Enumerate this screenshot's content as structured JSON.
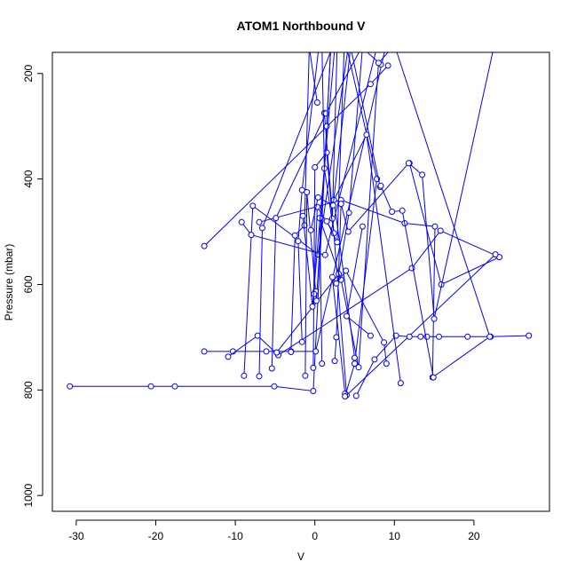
{
  "chart_data": {
    "type": "line",
    "title": "ATOM1 Northbound V",
    "xlabel": "V",
    "ylabel": "Pressure (mbar)",
    "xlim": [
      -33,
      29.5
    ],
    "ylim": [
      1030,
      160
    ],
    "y_reversed": true,
    "xticks": [
      -30,
      -20,
      -10,
      0,
      10,
      20
    ],
    "yticks": [
      200,
      400,
      600,
      800,
      1000
    ],
    "grid": false,
    "legend": "none",
    "line_color": "#0000ff",
    "marker": "open-circle",
    "series": [
      {
        "x": [
          -30.8,
          -20.6,
          -17.6,
          -5.1,
          -0.2,
          2.0
        ],
        "y": [
          793,
          793,
          793,
          793,
          802,
          150
        ]
      },
      {
        "x": [
          -13.9,
          -10.3,
          -6.1,
          -3.0,
          0.1,
          8.9
        ],
        "y": [
          727,
          727,
          727,
          727,
          727,
          150
        ]
      },
      {
        "x": [
          -13.9,
          7.0,
          9.2
        ],
        "y": [
          527,
          220,
          185
        ]
      },
      {
        "x": [
          -10.9,
          -7.2,
          -4.6,
          12.2,
          15.8,
          23.2,
          15.9,
          11.9
        ],
        "y": [
          737,
          697,
          734,
          569,
          498,
          548,
          600,
          370
        ]
      },
      {
        "x": [
          22.7,
          4.0,
          1.2
        ],
        "y": [
          543,
          810,
          275
        ]
      },
      {
        "x": [
          26.9,
          22.1,
          19.2,
          15.6,
          14.1,
          13.3,
          11.9,
          10.2,
          7.5,
          5.2
        ],
        "y": [
          697,
          699,
          699,
          699,
          699,
          699,
          699,
          697,
          742,
          811
        ]
      },
      {
        "x": [
          -8.9,
          -7.8,
          0.4,
          4.2
        ],
        "y": [
          773,
          451,
          543,
          150
        ]
      },
      {
        "x": [
          -9.2,
          -8.0,
          1.3,
          7.8
        ],
        "y": [
          482,
          506,
          544,
          150
        ]
      },
      {
        "x": [
          -7.0,
          -6.6,
          2.2
        ],
        "y": [
          774,
          493,
          150
        ]
      },
      {
        "x": [
          -7.0,
          3.3,
          11.3,
          15.1,
          14.8,
          22.0,
          10.1
        ],
        "y": [
          482,
          440,
          484,
          490,
          776,
          699,
          150
        ]
      },
      {
        "x": [
          -5.4,
          -4.9,
          1.4,
          5.9,
          8.3
        ],
        "y": [
          759,
          474,
          276,
          150,
          183
        ]
      },
      {
        "x": [
          -4.8,
          -4.8,
          3.0,
          4.3,
          6.0
        ],
        "y": [
          729,
          729,
          580,
          464,
          150
        ]
      },
      {
        "x": [
          -3.0,
          -2.5,
          -1.3,
          -0.7,
          0.3
        ],
        "y": [
          728,
          507,
          488,
          150,
          255
        ]
      },
      {
        "x": [
          -1.6,
          -2.1,
          -1.6,
          0.5,
          2.6
        ],
        "y": [
          709,
          518,
          421,
          150,
          150
        ]
      },
      {
        "x": [
          -1.2,
          -1.0,
          0.1,
          0.2,
          1.5,
          2.0
        ],
        "y": [
          773,
          425,
          613,
          631,
          300,
          150
        ]
      },
      {
        "x": [
          -0.2,
          0.0,
          1.5,
          2.2,
          2.8
        ],
        "y": [
          758,
          378,
          350,
          475,
          150
        ]
      },
      {
        "x": [
          0.9,
          0.6,
          3.3,
          5.5,
          8.0,
          9.8
        ],
        "y": [
          750,
          474,
          591,
          757,
          180,
          150
        ]
      },
      {
        "x": [
          2.5,
          2.7,
          3.3,
          4.2,
          11.8,
          13.5,
          15.0,
          22.5
        ],
        "y": [
          745,
          700,
          447,
          500,
          370,
          392,
          665,
          150
        ]
      },
      {
        "x": [
          3.8,
          2.2,
          2.7,
          3.9,
          8.7,
          9.0
        ],
        "y": [
          807,
          586,
          598,
          574,
          710,
          750
        ]
      },
      {
        "x": [
          3.8,
          5.0,
          7.8,
          4.0
        ],
        "y": [
          812,
          750,
          400,
          150
        ]
      },
      {
        "x": [
          5.0,
          2.4,
          6.5,
          10.8
        ],
        "y": [
          739,
          440,
          316,
          787
        ]
      },
      {
        "x": [
          -0.1,
          0.3,
          2.4,
          1.2,
          0.9
        ],
        "y": [
          618,
          453,
          503,
          380,
          150
        ]
      },
      {
        "x": [
          -0.5,
          0.4,
          2.3,
          4.5,
          8.2,
          8.3,
          9.7,
          11.0,
          14.9
        ],
        "y": [
          497,
          435,
          450,
          150,
          415,
          413,
          462,
          460,
          776
        ]
      },
      {
        "x": [
          7.0,
          4.0,
          6.0
        ],
        "y": [
          697,
          660,
          490
        ]
      },
      {
        "x": [
          1.5,
          2.8,
          3.7
        ],
        "y": [
          480,
          520,
          150
        ]
      },
      {
        "x": [
          -1.5,
          -0.3,
          2.5
        ],
        "y": [
          470,
          642,
          150
        ]
      }
    ]
  }
}
